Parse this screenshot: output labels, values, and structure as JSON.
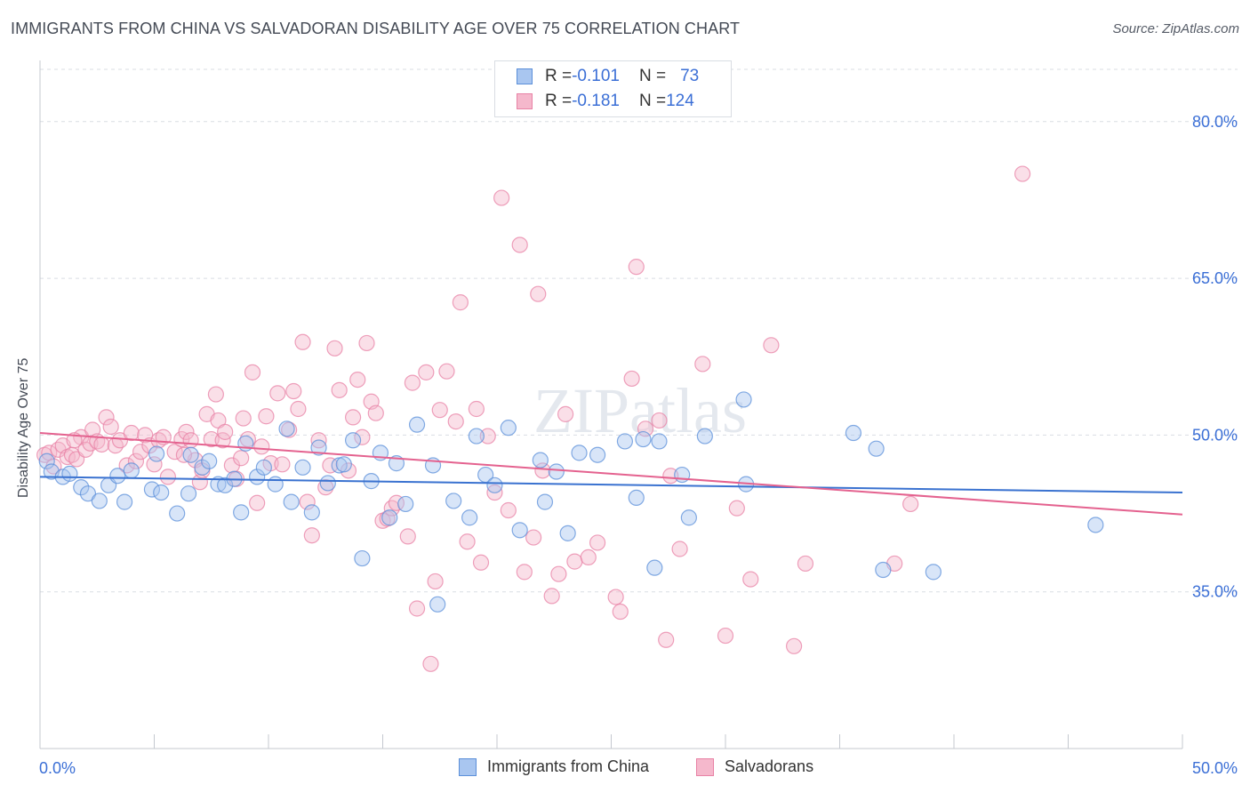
{
  "title": "IMMIGRANTS FROM CHINA VS SALVADORAN DISABILITY AGE OVER 75 CORRELATION CHART",
  "source": "Source: ZipAtlas.com",
  "watermark": "ZIPatlas",
  "legend_stats": {
    "r_label": "R = ",
    "n_label": "N = ",
    "rows": [
      {
        "r": "-0.101",
        "n": "73"
      },
      {
        "r": "-0.181",
        "n": "124"
      }
    ]
  },
  "colors": {
    "china_fill": "#a9c6f0",
    "china_stroke": "#5b8fd9",
    "china_line": "#3a72d0",
    "salv_fill": "#f5b8cc",
    "salv_stroke": "#e882a5",
    "salv_line": "#e4628f",
    "tick_label": "#3b6fd6",
    "grid": "#d9dde3"
  },
  "chart_data": {
    "type": "scatter",
    "title": "IMMIGRANTS FROM CHINA VS SALVADORAN DISABILITY AGE OVER 75 CORRELATION CHART",
    "xlabel": "",
    "ylabel": "Disability Age Over 75",
    "xlim": [
      0,
      50
    ],
    "ylim": [
      20,
      85
    ],
    "x_tick_labels": [
      "0.0%",
      "50.0%"
    ],
    "y_ticks": [
      35,
      50,
      65,
      80
    ],
    "y_tick_labels": [
      "35.0%",
      "50.0%",
      "65.0%",
      "80.0%"
    ],
    "grid": true,
    "legend_placement": "bottom",
    "series": [
      {
        "name": "Immigrants from China",
        "r": -0.101,
        "n": 73,
        "trend": {
          "x": [
            0,
            50
          ],
          "y": [
            46.0,
            44.5
          ]
        },
        "points": [
          [
            0.3,
            47.5
          ],
          [
            0.5,
            46.5
          ],
          [
            1.0,
            46.0
          ],
          [
            1.3,
            46.3
          ],
          [
            1.8,
            45.0
          ],
          [
            2.1,
            44.4
          ],
          [
            2.6,
            43.7
          ],
          [
            3.0,
            45.2
          ],
          [
            3.4,
            46.1
          ],
          [
            3.7,
            43.6
          ],
          [
            4.0,
            46.6
          ],
          [
            4.9,
            44.8
          ],
          [
            5.1,
            48.2
          ],
          [
            5.3,
            44.5
          ],
          [
            6.0,
            42.5
          ],
          [
            6.6,
            48.1
          ],
          [
            6.5,
            44.4
          ],
          [
            7.1,
            46.9
          ],
          [
            7.4,
            47.5
          ],
          [
            7.8,
            45.3
          ],
          [
            8.1,
            45.2
          ],
          [
            8.5,
            45.8
          ],
          [
            8.8,
            42.6
          ],
          [
            9.0,
            49.2
          ],
          [
            9.5,
            46.0
          ],
          [
            9.8,
            46.9
          ],
          [
            10.3,
            45.3
          ],
          [
            10.8,
            50.6
          ],
          [
            11.0,
            43.6
          ],
          [
            11.5,
            46.9
          ],
          [
            11.9,
            42.6
          ],
          [
            12.2,
            48.8
          ],
          [
            12.6,
            45.4
          ],
          [
            13.1,
            47.1
          ],
          [
            13.3,
            47.2
          ],
          [
            13.7,
            49.5
          ],
          [
            14.1,
            38.2
          ],
          [
            14.5,
            45.6
          ],
          [
            14.9,
            48.3
          ],
          [
            15.3,
            42.1
          ],
          [
            15.6,
            47.3
          ],
          [
            16.0,
            43.4
          ],
          [
            16.5,
            51.0
          ],
          [
            17.2,
            47.1
          ],
          [
            17.4,
            33.8
          ],
          [
            18.1,
            43.7
          ],
          [
            18.8,
            42.1
          ],
          [
            19.1,
            49.9
          ],
          [
            19.5,
            46.2
          ],
          [
            19.9,
            45.2
          ],
          [
            20.5,
            50.7
          ],
          [
            21.0,
            40.9
          ],
          [
            21.9,
            47.6
          ],
          [
            22.1,
            43.6
          ],
          [
            22.6,
            46.5
          ],
          [
            23.1,
            40.6
          ],
          [
            23.6,
            48.3
          ],
          [
            24.4,
            48.1
          ],
          [
            25.6,
            49.4
          ],
          [
            26.1,
            44.0
          ],
          [
            26.4,
            49.6
          ],
          [
            26.9,
            37.3
          ],
          [
            27.1,
            49.4
          ],
          [
            28.1,
            46.2
          ],
          [
            28.4,
            42.1
          ],
          [
            29.1,
            49.9
          ],
          [
            30.9,
            45.3
          ],
          [
            30.8,
            53.4
          ],
          [
            35.6,
            50.2
          ],
          [
            36.6,
            48.7
          ],
          [
            36.9,
            37.1
          ],
          [
            39.1,
            36.9
          ],
          [
            46.2,
            41.4
          ]
        ]
      },
      {
        "name": "Salvadorans",
        "r": -0.181,
        "n": 124,
        "trend": {
          "x": [
            0,
            50
          ],
          "y": [
            50.2,
            42.4
          ]
        },
        "points": [
          [
            0.2,
            48.1
          ],
          [
            0.4,
            48.3
          ],
          [
            0.6,
            47.0
          ],
          [
            0.8,
            48.6
          ],
          [
            1.0,
            49.0
          ],
          [
            1.2,
            47.9
          ],
          [
            1.4,
            48.1
          ],
          [
            1.6,
            47.7
          ],
          [
            1.8,
            49.8
          ],
          [
            2.0,
            48.6
          ],
          [
            2.2,
            49.2
          ],
          [
            2.3,
            50.5
          ],
          [
            2.5,
            49.4
          ],
          [
            2.7,
            49.1
          ],
          [
            2.9,
            51.7
          ],
          [
            3.1,
            50.8
          ],
          [
            3.3,
            49.0
          ],
          [
            3.5,
            49.5
          ],
          [
            3.8,
            47.1
          ],
          [
            4.0,
            50.2
          ],
          [
            4.2,
            47.5
          ],
          [
            4.4,
            48.4
          ],
          [
            4.6,
            50.0
          ],
          [
            4.8,
            49.0
          ],
          [
            5.0,
            47.2
          ],
          [
            5.2,
            49.5
          ],
          [
            5.4,
            49.8
          ],
          [
            5.6,
            46.0
          ],
          [
            5.9,
            48.4
          ],
          [
            6.2,
            49.6
          ],
          [
            6.4,
            50.3
          ],
          [
            6.6,
            49.5
          ],
          [
            6.8,
            47.6
          ],
          [
            7.0,
            45.5
          ],
          [
            7.1,
            46.6
          ],
          [
            7.3,
            52.0
          ],
          [
            7.5,
            49.6
          ],
          [
            7.7,
            53.9
          ],
          [
            7.8,
            51.4
          ],
          [
            8.0,
            49.5
          ],
          [
            8.1,
            50.3
          ],
          [
            8.4,
            47.1
          ],
          [
            8.6,
            45.8
          ],
          [
            8.8,
            47.8
          ],
          [
            8.9,
            51.6
          ],
          [
            9.1,
            49.6
          ],
          [
            9.3,
            56.0
          ],
          [
            9.5,
            43.5
          ],
          [
            9.7,
            48.9
          ],
          [
            9.9,
            51.8
          ],
          [
            10.1,
            47.3
          ],
          [
            10.4,
            54.0
          ],
          [
            10.6,
            47.2
          ],
          [
            10.9,
            50.5
          ],
          [
            11.1,
            54.2
          ],
          [
            11.3,
            52.5
          ],
          [
            11.5,
            58.9
          ],
          [
            11.7,
            43.6
          ],
          [
            11.9,
            40.4
          ],
          [
            12.2,
            49.5
          ],
          [
            12.5,
            45.0
          ],
          [
            12.7,
            47.1
          ],
          [
            12.9,
            58.3
          ],
          [
            13.1,
            54.3
          ],
          [
            13.5,
            46.6
          ],
          [
            13.7,
            51.7
          ],
          [
            13.9,
            55.3
          ],
          [
            14.1,
            49.8
          ],
          [
            14.3,
            58.8
          ],
          [
            14.5,
            53.2
          ],
          [
            14.7,
            52.1
          ],
          [
            15.0,
            41.8
          ],
          [
            15.2,
            42.0
          ],
          [
            15.4,
            43.0
          ],
          [
            15.6,
            43.5
          ],
          [
            16.1,
            40.3
          ],
          [
            16.3,
            55.0
          ],
          [
            16.5,
            33.4
          ],
          [
            16.9,
            56.0
          ],
          [
            17.1,
            28.1
          ],
          [
            17.3,
            36.0
          ],
          [
            17.5,
            52.4
          ],
          [
            17.8,
            56.1
          ],
          [
            18.2,
            51.3
          ],
          [
            18.4,
            62.7
          ],
          [
            18.7,
            39.8
          ],
          [
            19.1,
            52.5
          ],
          [
            19.3,
            37.8
          ],
          [
            19.6,
            49.9
          ],
          [
            19.9,
            44.5
          ],
          [
            20.2,
            72.7
          ],
          [
            20.5,
            42.8
          ],
          [
            21.0,
            68.2
          ],
          [
            21.2,
            36.9
          ],
          [
            21.6,
            40.2
          ],
          [
            21.8,
            63.5
          ],
          [
            22.0,
            46.6
          ],
          [
            22.4,
            34.6
          ],
          [
            22.7,
            36.7
          ],
          [
            23.0,
            52.0
          ],
          [
            23.4,
            37.9
          ],
          [
            24.0,
            38.3
          ],
          [
            24.4,
            39.7
          ],
          [
            25.2,
            34.5
          ],
          [
            25.4,
            33.1
          ],
          [
            25.9,
            55.4
          ],
          [
            26.1,
            66.1
          ],
          [
            26.5,
            50.6
          ],
          [
            27.1,
            51.4
          ],
          [
            27.4,
            30.4
          ],
          [
            27.6,
            46.1
          ],
          [
            28.0,
            39.1
          ],
          [
            29.0,
            56.8
          ],
          [
            30.0,
            30.8
          ],
          [
            30.5,
            43.0
          ],
          [
            31.1,
            36.2
          ],
          [
            32.0,
            58.6
          ],
          [
            33.0,
            29.8
          ],
          [
            33.5,
            37.7
          ],
          [
            37.4,
            37.7
          ],
          [
            38.1,
            43.4
          ],
          [
            43.0,
            75.0
          ],
          [
            1.5,
            49.5
          ],
          [
            6.3,
            48.1
          ]
        ]
      }
    ]
  }
}
